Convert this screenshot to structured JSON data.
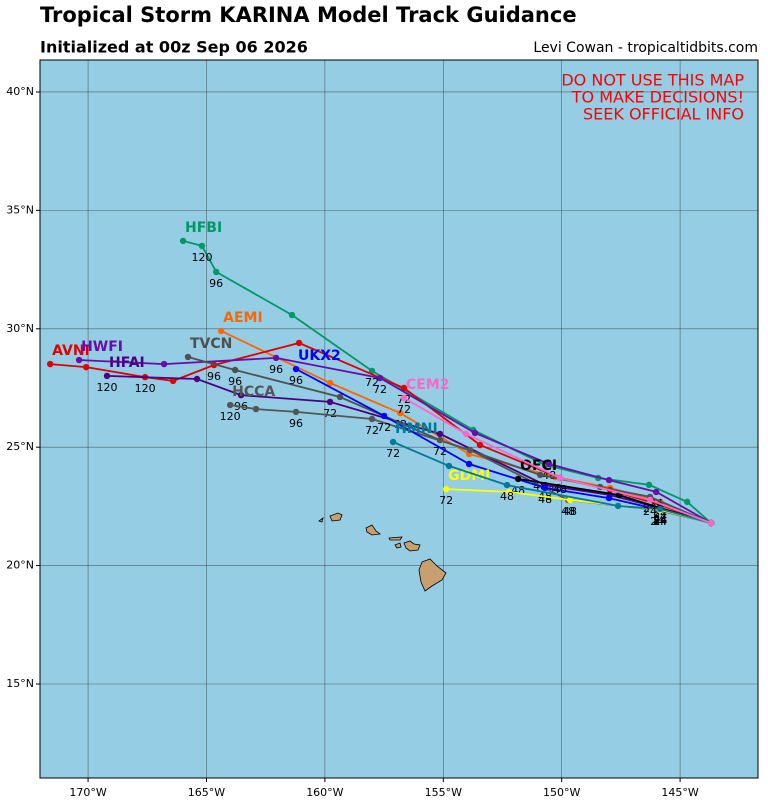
{
  "chart_data": {
    "type": "map",
    "title": "Tropical Storm KARINA Model Track Guidance",
    "subtitle": "Initialized at 00z Sep 06 2026",
    "credit": "Levi Cowan - tropicaltidbits.com",
    "warning": [
      "DO NOT USE THIS MAP",
      "TO MAKE DECISIONS!",
      "SEEK OFFICIAL INFO"
    ],
    "xlim": [
      -172.03,
      -141.71
    ],
    "ylim": [
      11.03,
      41.35
    ],
    "xticks": [
      {
        "value": -170,
        "label": "170°W"
      },
      {
        "value": -165,
        "label": "165°W"
      },
      {
        "value": -160,
        "label": "160°W"
      },
      {
        "value": -155,
        "label": "155°W"
      },
      {
        "value": -150,
        "label": "150°W"
      },
      {
        "value": -145,
        "label": "145°W"
      }
    ],
    "yticks": [
      {
        "value": 15,
        "label": "15°N"
      },
      {
        "value": 20,
        "label": "20°N"
      },
      {
        "value": 25,
        "label": "25°N"
      },
      {
        "value": 30,
        "label": "30°N"
      },
      {
        "value": 35,
        "label": "35°N"
      },
      {
        "value": 40,
        "label": "40°N"
      }
    ],
    "grid": true,
    "series": [
      {
        "name": "HFBI",
        "color": "#009966",
        "lon": [
          -143.69,
          -144.7,
          -146.31,
          -148.46,
          -150.7,
          -153.74,
          -158.01,
          -161.39,
          -164.59,
          -165.19,
          -165.99
        ],
        "lat": [
          21.8,
          22.69,
          23.41,
          23.7,
          24.25,
          25.73,
          28.22,
          30.58,
          32.4,
          33.5,
          33.71
        ],
        "hours": [
          null,
          null,
          null,
          null,
          null,
          null,
          72,
          null,
          96,
          120,
          null
        ]
      },
      {
        "name": "AEMI",
        "color": "#ff6600",
        "lon": [
          -143.69,
          -145.84,
          -147.96,
          -150.28,
          -153.91,
          -156.82,
          -159.78,
          -164.38
        ],
        "lat": [
          21.8,
          22.69,
          23.28,
          23.74,
          24.71,
          26.44,
          27.71,
          29.91
        ],
        "hours": [
          null,
          24,
          null,
          48,
          null,
          72,
          null,
          null
        ]
      },
      {
        "name": "AVNI",
        "color": "#e00000",
        "lon": [
          -143.69,
          -145.84,
          -147.96,
          -150.07,
          -153.45,
          -156.66,
          -161.09,
          -164.68,
          -166.41,
          -167.59,
          -170.08,
          -171.6
        ],
        "lat": [
          21.8,
          22.56,
          23.19,
          23.7,
          25.09,
          27.5,
          29.4,
          28.47,
          27.8,
          27.96,
          28.38,
          28.51
        ],
        "hours": [
          null,
          24,
          null,
          48,
          null,
          72,
          null,
          96,
          null,
          120,
          null,
          null
        ]
      },
      {
        "name": "HWFI",
        "color": "#6a0dad",
        "lon": [
          -143.69,
          -146.01,
          -148.0,
          -150.53,
          -153.66,
          -157.67,
          -162.06,
          -166.79,
          -170.38
        ],
        "lat": [
          21.8,
          23.11,
          23.61,
          24.29,
          25.6,
          27.92,
          28.77,
          28.51,
          28.68
        ],
        "hours": [
          null,
          24,
          null,
          48,
          null,
          72,
          96,
          null,
          null
        ]
      },
      {
        "name": "HFAI",
        "color": "#4b0082",
        "lon": [
          -143.69,
          -145.84,
          -147.96,
          -150.7,
          -155.14,
          -159.78,
          -163.54,
          -165.4,
          -169.2
        ],
        "lat": [
          21.8,
          22.43,
          22.98,
          23.4,
          25.56,
          26.91,
          27.2,
          27.88,
          28.01
        ],
        "hours": [
          null,
          24,
          null,
          48,
          null,
          72,
          96,
          null,
          120
        ]
      },
      {
        "name": "TVCN",
        "color": "#505050",
        "lon": [
          -143.69,
          -146.27,
          -148.38,
          -150.91,
          -155.14,
          -159.36,
          -163.79,
          -165.78
        ],
        "lat": [
          21.8,
          22.9,
          23.32,
          23.83,
          25.3,
          27.12,
          28.26,
          28.81
        ],
        "hours": [
          null,
          24,
          null,
          48,
          72,
          null,
          96,
          null
        ]
      },
      {
        "name": "HCCA",
        "color": "#555555",
        "lon": [
          -143.69,
          -145.97,
          -149.73,
          -153.87,
          -158.01,
          -161.22,
          -162.91,
          -164.0
        ],
        "lat": [
          21.8,
          22.35,
          22.77,
          24.88,
          26.19,
          26.49,
          26.61,
          26.78
        ],
        "hours": [
          null,
          24,
          48,
          null,
          72,
          96,
          null,
          120
        ]
      },
      {
        "name": "UKX2",
        "color": "#0000ff",
        "lon": [
          -143.69,
          -145.84,
          -148.0,
          -150.7,
          -153.91,
          -157.5,
          -161.22
        ],
        "lat": [
          21.8,
          22.35,
          22.85,
          23.28,
          24.29,
          26.32,
          28.3
        ],
        "hours": [
          null,
          24,
          null,
          48,
          null,
          72,
          96
        ]
      },
      {
        "name": "OFCI",
        "color": "#000000",
        "lon": [
          -143.69,
          -145.84,
          -147.58,
          -151.84
        ],
        "lat": [
          21.8,
          22.43,
          22.98,
          23.66
        ],
        "hours": [
          null,
          24,
          null,
          48
        ]
      },
      {
        "name": "GDMI",
        "color": "#ffff00",
        "lon": [
          -143.69,
          -145.84,
          -149.65,
          -152.22,
          -154.88
        ],
        "lat": [
          21.8,
          22.35,
          22.77,
          23.11,
          23.23
        ],
        "hours": [
          null,
          24,
          48,
          null,
          72
        ]
      },
      {
        "name": "HMNI",
        "color": "#007a99",
        "lon": [
          -143.69,
          -145.84,
          -147.62,
          -152.31,
          -154.76,
          -157.12
        ],
        "lat": [
          21.8,
          22.39,
          22.52,
          23.4,
          24.21,
          25.22
        ],
        "hours": [
          null,
          24,
          null,
          48,
          null,
          72
        ]
      },
      {
        "name": "CEM2",
        "color": "#ff66cc",
        "lon": [
          -143.69,
          -146.27,
          -150.07,
          -154.04,
          -156.66
        ],
        "lat": [
          21.8,
          22.77,
          23.7,
          25.56,
          27.08
        ],
        "hours": [
          null,
          24,
          48,
          null,
          72
        ]
      }
    ]
  }
}
